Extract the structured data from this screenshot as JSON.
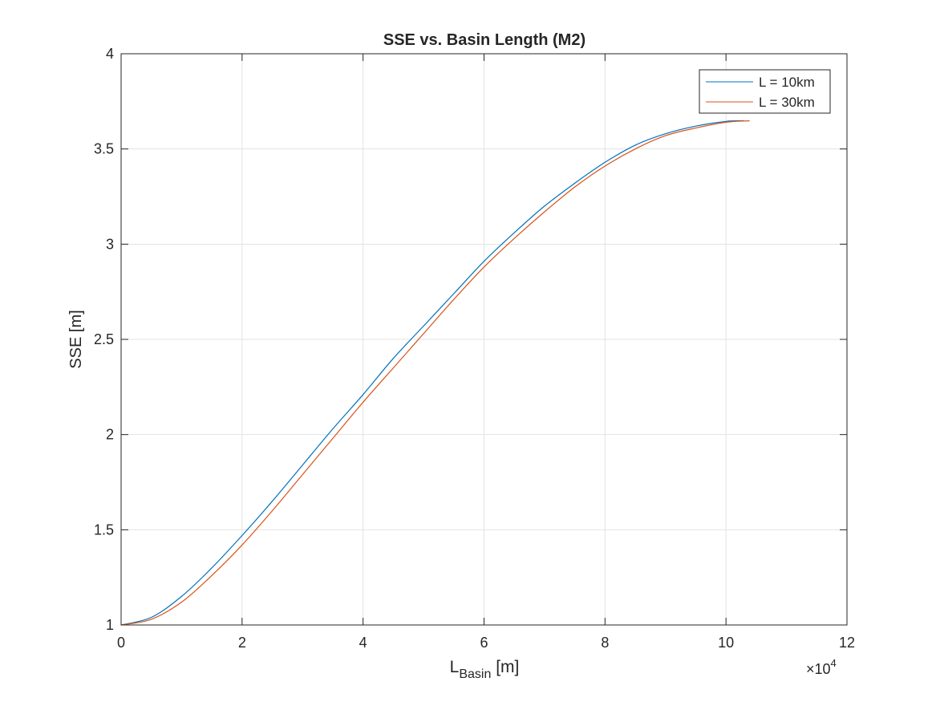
{
  "chart_data": {
    "type": "line",
    "title": "SSE vs. Basin Length (M2)",
    "xlabel": {
      "main": "L",
      "sub": "Basin",
      "unit": "[m]"
    },
    "ylabel": "SSE [m]",
    "x_exponent_label": {
      "prefix": "×10",
      "power": "4"
    },
    "x_scale": 10000,
    "xlim": [
      0,
      120000
    ],
    "ylim": [
      1,
      4
    ],
    "xticks": [
      0,
      20000,
      40000,
      60000,
      80000,
      100000,
      120000
    ],
    "xtick_labels": [
      "0",
      "2",
      "4",
      "6",
      "8",
      "10",
      "12"
    ],
    "yticks": [
      1,
      1.5,
      2,
      2.5,
      3,
      3.5,
      4
    ],
    "ytick_labels": [
      "1",
      "1.5",
      "2",
      "2.5",
      "3",
      "3.5",
      "4"
    ],
    "grid": true,
    "legend_position": "top-right",
    "series": [
      {
        "name": "L = 10km",
        "color": "#0072BD",
        "x": [
          0,
          5000,
          10000,
          15000,
          20000,
          25000,
          30000,
          35000,
          40000,
          45000,
          50000,
          55000,
          60000,
          65000,
          70000,
          75000,
          80000,
          85000,
          90000,
          95000,
          100000,
          103000
        ],
        "y": [
          1.0,
          1.04,
          1.15,
          1.3,
          1.47,
          1.65,
          1.84,
          2.03,
          2.21,
          2.4,
          2.57,
          2.74,
          2.91,
          3.06,
          3.2,
          3.32,
          3.43,
          3.52,
          3.58,
          3.62,
          3.645,
          3.648
        ]
      },
      {
        "name": "L = 30km",
        "color": "#D95319",
        "x": [
          0,
          5000,
          10000,
          15000,
          20000,
          25000,
          30000,
          35000,
          40000,
          45000,
          50000,
          55000,
          60000,
          65000,
          70000,
          75000,
          80000,
          85000,
          90000,
          95000,
          100000,
          103900
        ],
        "y": [
          1.0,
          1.03,
          1.12,
          1.26,
          1.42,
          1.6,
          1.79,
          1.98,
          2.17,
          2.35,
          2.53,
          2.71,
          2.88,
          3.03,
          3.17,
          3.3,
          3.41,
          3.5,
          3.57,
          3.61,
          3.64,
          3.648
        ]
      }
    ]
  }
}
